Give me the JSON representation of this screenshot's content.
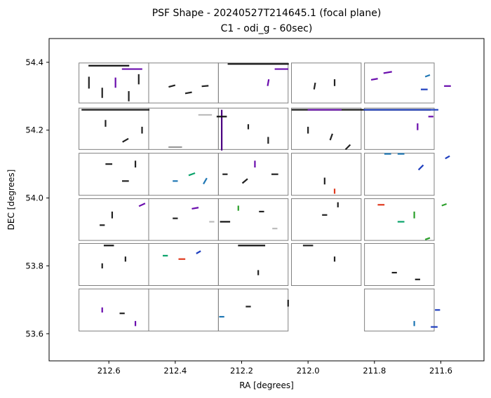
{
  "chart_data": {
    "type": "scatter",
    "title": "PSF Shape - 20240527T214645.1 (focal plane)",
    "subtitle": "C1 - odi_g - 60sec)",
    "xlabel": "RA [degrees]",
    "ylabel": "DEC [degrees]",
    "xlim": [
      212.78,
      211.47
    ],
    "ylim": [
      53.52,
      54.47
    ],
    "x_reversed": true,
    "x_ticks": [
      212.6,
      212.4,
      212.2,
      212.0,
      211.8,
      211.6
    ],
    "x_tick_labels": [
      "212.6",
      "212.4",
      "212.2",
      "212.0",
      "211.8",
      "211.6"
    ],
    "y_ticks": [
      53.6,
      53.8,
      54.0,
      54.2,
      54.4
    ],
    "y_tick_labels": [
      "53.6",
      "53.8",
      "54.0",
      "54.2",
      "54.4"
    ],
    "grid": false,
    "ccd_grid": {
      "columns_ra": [
        [
          212.69,
          212.48
        ],
        [
          212.48,
          212.27
        ],
        [
          212.27,
          212.06
        ],
        [
          212.05,
          211.84
        ],
        [
          211.83,
          211.62
        ]
      ],
      "rows_dec": [
        [
          54.398,
          54.28
        ],
        [
          54.265,
          54.143
        ],
        [
          54.132,
          54.008
        ],
        [
          53.998,
          53.875
        ],
        [
          53.866,
          53.742
        ],
        [
          53.732,
          53.608
        ]
      ],
      "missing": [
        [
          5,
          3
        ]
      ],
      "outline_color": "#808080"
    },
    "psf_segments": [
      {
        "ra": 212.66,
        "dec": 54.34,
        "angle": 90,
        "length": 0.035,
        "color": "#222222"
      },
      {
        "ra": 212.62,
        "dec": 54.31,
        "angle": 90,
        "length": 0.03,
        "color": "#222222"
      },
      {
        "ra": 212.58,
        "dec": 54.34,
        "angle": 90,
        "length": 0.03,
        "color": "#6a0dad"
      },
      {
        "ra": 212.54,
        "dec": 54.3,
        "angle": 90,
        "length": 0.03,
        "color": "#222222"
      },
      {
        "ra": 212.51,
        "dec": 54.35,
        "angle": 90,
        "length": 0.03,
        "color": "#222222"
      },
      {
        "ra": 212.6,
        "dec": 54.39,
        "angle": 0,
        "length": 0.12,
        "color": "#111111"
      },
      {
        "ra": 212.53,
        "dec": 54.38,
        "angle": 0,
        "length": 0.06,
        "color": "#6a0dad"
      },
      {
        "ra": 212.41,
        "dec": 54.33,
        "angle": 15,
        "length": 0.02,
        "color": "#222222"
      },
      {
        "ra": 212.36,
        "dec": 54.31,
        "angle": 10,
        "length": 0.02,
        "color": "#222222"
      },
      {
        "ra": 212.31,
        "dec": 54.33,
        "angle": 5,
        "length": 0.02,
        "color": "#222222"
      },
      {
        "ra": 212.15,
        "dec": 54.395,
        "angle": 0,
        "length": 0.18,
        "color": "#111111"
      },
      {
        "ra": 212.08,
        "dec": 54.38,
        "angle": 0,
        "length": 0.04,
        "color": "#6a0dad"
      },
      {
        "ra": 212.12,
        "dec": 54.34,
        "angle": 80,
        "length": 0.02,
        "color": "#6a0dad"
      },
      {
        "ra": 211.98,
        "dec": 54.33,
        "angle": 80,
        "length": 0.02,
        "color": "#222222"
      },
      {
        "ra": 211.92,
        "dec": 54.34,
        "angle": 90,
        "length": 0.02,
        "color": "#222222"
      },
      {
        "ra": 211.76,
        "dec": 54.37,
        "angle": 10,
        "length": 0.025,
        "color": "#6a0dad"
      },
      {
        "ra": 211.8,
        "dec": 54.35,
        "angle": 10,
        "length": 0.02,
        "color": "#6a0dad"
      },
      {
        "ra": 211.65,
        "dec": 54.32,
        "angle": 0,
        "length": 0.02,
        "color": "#1f3fbf"
      },
      {
        "ra": 211.64,
        "dec": 54.36,
        "angle": 20,
        "length": 0.015,
        "color": "#1f77b4"
      },
      {
        "ra": 211.58,
        "dec": 54.33,
        "angle": 0,
        "length": 0.02,
        "color": "#6a0dad"
      },
      {
        "ra": 212.58,
        "dec": 54.26,
        "angle": 0,
        "length": 0.2,
        "color": "#111111"
      },
      {
        "ra": 212.61,
        "dec": 54.22,
        "angle": 90,
        "length": 0.02,
        "color": "#222222"
      },
      {
        "ra": 212.55,
        "dec": 54.17,
        "angle": 30,
        "length": 0.02,
        "color": "#222222"
      },
      {
        "ra": 212.5,
        "dec": 54.2,
        "angle": 90,
        "length": 0.02,
        "color": "#222222"
      },
      {
        "ra": 212.26,
        "dec": 54.2,
        "angle": 90,
        "length": 0.12,
        "color": "#4b0082"
      },
      {
        "ra": 212.26,
        "dec": 54.24,
        "angle": 0,
        "length": 0.03,
        "color": "#111111"
      },
      {
        "ra": 212.31,
        "dec": 54.245,
        "angle": 0,
        "length": 0.04,
        "color": "#bbbbbb"
      },
      {
        "ra": 212.4,
        "dec": 54.15,
        "angle": 0,
        "length": 0.04,
        "color": "#999999"
      },
      {
        "ra": 212.18,
        "dec": 54.21,
        "angle": 90,
        "length": 0.015,
        "color": "#222222"
      },
      {
        "ra": 212.12,
        "dec": 54.17,
        "angle": 90,
        "length": 0.02,
        "color": "#222222"
      },
      {
        "ra": 211.84,
        "dec": 54.26,
        "angle": 0,
        "length": 0.41,
        "color": "#111111"
      },
      {
        "ra": 211.72,
        "dec": 54.26,
        "angle": 0,
        "length": 0.22,
        "color": "#1f3fbf"
      },
      {
        "ra": 211.95,
        "dec": 54.26,
        "angle": 0,
        "length": 0.1,
        "color": "#6a0dad"
      },
      {
        "ra": 212.0,
        "dec": 54.2,
        "angle": 90,
        "length": 0.02,
        "color": "#222222"
      },
      {
        "ra": 211.93,
        "dec": 54.18,
        "angle": 70,
        "length": 0.02,
        "color": "#222222"
      },
      {
        "ra": 211.88,
        "dec": 54.15,
        "angle": 45,
        "length": 0.02,
        "color": "#222222"
      },
      {
        "ra": 211.63,
        "dec": 54.24,
        "angle": 0,
        "length": 0.015,
        "color": "#6a0dad"
      },
      {
        "ra": 211.67,
        "dec": 54.21,
        "angle": 90,
        "length": 0.02,
        "color": "#6a0dad"
      },
      {
        "ra": 212.6,
        "dec": 54.1,
        "angle": 0,
        "length": 0.02,
        "color": "#222222"
      },
      {
        "ra": 212.55,
        "dec": 54.05,
        "angle": 0,
        "length": 0.02,
        "color": "#222222"
      },
      {
        "ra": 212.52,
        "dec": 54.1,
        "angle": 90,
        "length": 0.02,
        "color": "#222222"
      },
      {
        "ra": 212.35,
        "dec": 54.07,
        "angle": 20,
        "length": 0.02,
        "color": "#0aa36b"
      },
      {
        "ra": 212.4,
        "dec": 54.05,
        "angle": 0,
        "length": 0.015,
        "color": "#1f77b4"
      },
      {
        "ra": 212.31,
        "dec": 54.05,
        "angle": 60,
        "length": 0.02,
        "color": "#1f77b4"
      },
      {
        "ra": 212.25,
        "dec": 54.07,
        "angle": 0,
        "length": 0.015,
        "color": "#222222"
      },
      {
        "ra": 212.16,
        "dec": 54.1,
        "angle": 90,
        "length": 0.02,
        "color": "#6a0dad"
      },
      {
        "ra": 212.1,
        "dec": 54.07,
        "angle": 0,
        "length": 0.02,
        "color": "#222222"
      },
      {
        "ra": 212.19,
        "dec": 54.05,
        "angle": 40,
        "length": 0.02,
        "color": "#222222"
      },
      {
        "ra": 211.95,
        "dec": 54.05,
        "angle": 90,
        "length": 0.02,
        "color": "#222222"
      },
      {
        "ra": 211.92,
        "dec": 54.02,
        "angle": 90,
        "length": 0.015,
        "color": "#e03a1e"
      },
      {
        "ra": 211.76,
        "dec": 54.13,
        "angle": 0,
        "length": 0.02,
        "color": "#1f77b4"
      },
      {
        "ra": 211.72,
        "dec": 54.13,
        "angle": 0,
        "length": 0.02,
        "color": "#1f77b4"
      },
      {
        "ra": 211.66,
        "dec": 54.09,
        "angle": 45,
        "length": 0.02,
        "color": "#1f3fbf"
      },
      {
        "ra": 211.58,
        "dec": 54.12,
        "angle": 30,
        "length": 0.015,
        "color": "#1f3fbf"
      },
      {
        "ra": 212.59,
        "dec": 53.95,
        "angle": 90,
        "length": 0.02,
        "color": "#222222"
      },
      {
        "ra": 212.62,
        "dec": 53.92,
        "angle": 0,
        "length": 0.015,
        "color": "#222222"
      },
      {
        "ra": 212.5,
        "dec": 53.98,
        "angle": 25,
        "length": 0.02,
        "color": "#6a0dad"
      },
      {
        "ra": 212.4,
        "dec": 53.94,
        "angle": 0,
        "length": 0.015,
        "color": "#222222"
      },
      {
        "ra": 212.34,
        "dec": 53.97,
        "angle": 10,
        "length": 0.02,
        "color": "#6a0dad"
      },
      {
        "ra": 212.29,
        "dec": 53.93,
        "angle": 0,
        "length": 0.015,
        "color": "#bbbbbb"
      },
      {
        "ra": 212.25,
        "dec": 53.93,
        "angle": 0,
        "length": 0.03,
        "color": "#111111"
      },
      {
        "ra": 212.21,
        "dec": 53.97,
        "angle": 90,
        "length": 0.015,
        "color": "#2ca02c"
      },
      {
        "ra": 212.14,
        "dec": 53.96,
        "angle": 0,
        "length": 0.015,
        "color": "#222222"
      },
      {
        "ra": 212.1,
        "dec": 53.91,
        "angle": 0,
        "length": 0.015,
        "color": "#bbbbbb"
      },
      {
        "ra": 211.95,
        "dec": 53.95,
        "angle": 0,
        "length": 0.015,
        "color": "#222222"
      },
      {
        "ra": 211.91,
        "dec": 53.98,
        "angle": 90,
        "length": 0.015,
        "color": "#222222"
      },
      {
        "ra": 211.78,
        "dec": 53.98,
        "angle": 0,
        "length": 0.02,
        "color": "#e03a1e"
      },
      {
        "ra": 211.72,
        "dec": 53.93,
        "angle": 0,
        "length": 0.02,
        "color": "#0aa36b"
      },
      {
        "ra": 211.68,
        "dec": 53.95,
        "angle": 90,
        "length": 0.02,
        "color": "#2ca02c"
      },
      {
        "ra": 211.64,
        "dec": 53.88,
        "angle": 20,
        "length": 0.015,
        "color": "#2ca02c"
      },
      {
        "ra": 211.59,
        "dec": 53.98,
        "angle": 20,
        "length": 0.015,
        "color": "#2ca02c"
      },
      {
        "ra": 212.6,
        "dec": 53.86,
        "angle": 0,
        "length": 0.03,
        "color": "#111111"
      },
      {
        "ra": 212.62,
        "dec": 53.8,
        "angle": 90,
        "length": 0.015,
        "color": "#222222"
      },
      {
        "ra": 212.55,
        "dec": 53.82,
        "angle": 90,
        "length": 0.015,
        "color": "#222222"
      },
      {
        "ra": 212.38,
        "dec": 53.82,
        "angle": 0,
        "length": 0.02,
        "color": "#e03a1e"
      },
      {
        "ra": 212.33,
        "dec": 53.84,
        "angle": 30,
        "length": 0.015,
        "color": "#1f3fbf"
      },
      {
        "ra": 212.43,
        "dec": 53.83,
        "angle": 0,
        "length": 0.015,
        "color": "#0aa36b"
      },
      {
        "ra": 212.17,
        "dec": 53.86,
        "angle": 0,
        "length": 0.08,
        "color": "#111111"
      },
      {
        "ra": 212.15,
        "dec": 53.78,
        "angle": 90,
        "length": 0.015,
        "color": "#222222"
      },
      {
        "ra": 212.0,
        "dec": 53.86,
        "angle": 0,
        "length": 0.03,
        "color": "#222222"
      },
      {
        "ra": 211.92,
        "dec": 53.82,
        "angle": 90,
        "length": 0.015,
        "color": "#222222"
      },
      {
        "ra": 211.74,
        "dec": 53.78,
        "angle": 0,
        "length": 0.015,
        "color": "#222222"
      },
      {
        "ra": 211.67,
        "dec": 53.76,
        "angle": 0,
        "length": 0.015,
        "color": "#222222"
      },
      {
        "ra": 212.62,
        "dec": 53.67,
        "angle": 90,
        "length": 0.015,
        "color": "#6a0dad"
      },
      {
        "ra": 212.56,
        "dec": 53.66,
        "angle": 0,
        "length": 0.015,
        "color": "#222222"
      },
      {
        "ra": 212.52,
        "dec": 53.63,
        "angle": 90,
        "length": 0.015,
        "color": "#6a0dad"
      },
      {
        "ra": 212.26,
        "dec": 53.65,
        "angle": 0,
        "length": 0.015,
        "color": "#1f77b4"
      },
      {
        "ra": 212.06,
        "dec": 53.69,
        "angle": 90,
        "length": 0.02,
        "color": "#222222"
      },
      {
        "ra": 212.18,
        "dec": 53.68,
        "angle": 0,
        "length": 0.015,
        "color": "#222222"
      },
      {
        "ra": 211.61,
        "dec": 53.67,
        "angle": 0,
        "length": 0.015,
        "color": "#1f3fbf"
      },
      {
        "ra": 211.62,
        "dec": 53.62,
        "angle": 0,
        "length": 0.02,
        "color": "#1f3fbf"
      },
      {
        "ra": 211.68,
        "dec": 53.63,
        "angle": 90,
        "length": 0.015,
        "color": "#1f77b4"
      }
    ]
  }
}
